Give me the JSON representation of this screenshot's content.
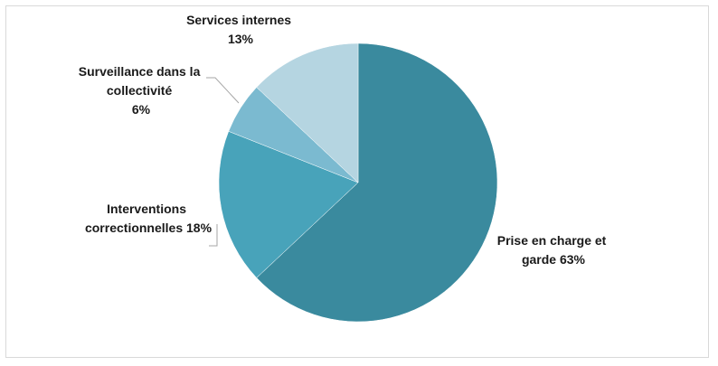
{
  "chart_data": {
    "type": "pie",
    "slices": [
      {
        "label": "Prise en charge et garde",
        "value": 63,
        "label_text": [
          "Prise en charge et",
          "garde 63%"
        ],
        "color": "#3a8a9e"
      },
      {
        "label": "Interventions correctionnelles",
        "value": 18,
        "label_text": [
          "Interventions",
          "correctionnelles 18%"
        ],
        "color": "#48a3ba"
      },
      {
        "label": "Surveillance dans la collectivité",
        "value": 6,
        "label_text": [
          "Surveillance dans la",
          "collectivité",
          "6%"
        ],
        "color": "#7bbad0"
      },
      {
        "label": "Services internes",
        "value": 13,
        "label_text": [
          "Services internes",
          "13%"
        ],
        "color": "#b5d5e1"
      }
    ],
    "start_angle": "12 o'clock",
    "direction": "clockwise",
    "legend": "none"
  }
}
